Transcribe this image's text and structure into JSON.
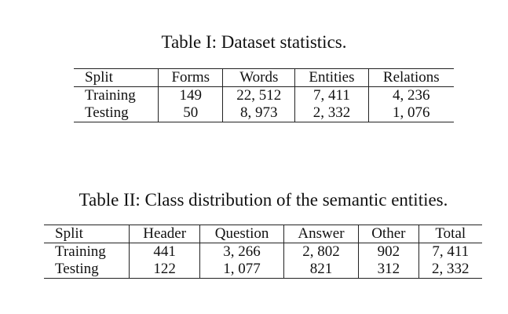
{
  "table1": {
    "caption": "Table I: Dataset statistics.",
    "headers": [
      "Split",
      "Forms",
      "Words",
      "Entities",
      "Relations"
    ],
    "rows": [
      [
        "Training",
        "149",
        "22, 512",
        "7, 411",
        "4, 236"
      ],
      [
        "Testing",
        "50",
        "8, 973",
        "2, 332",
        "1, 076"
      ]
    ]
  },
  "table2": {
    "caption": "Table II: Class distribution of the semantic entities.",
    "headers": [
      "Split",
      "Header",
      "Question",
      "Answer",
      "Other",
      "Total"
    ],
    "rows": [
      [
        "Training",
        "441",
        "3, 266",
        "2, 802",
        "902",
        "7, 411"
      ],
      [
        "Testing",
        "122",
        "1, 077",
        "821",
        "312",
        "2, 332"
      ]
    ]
  }
}
